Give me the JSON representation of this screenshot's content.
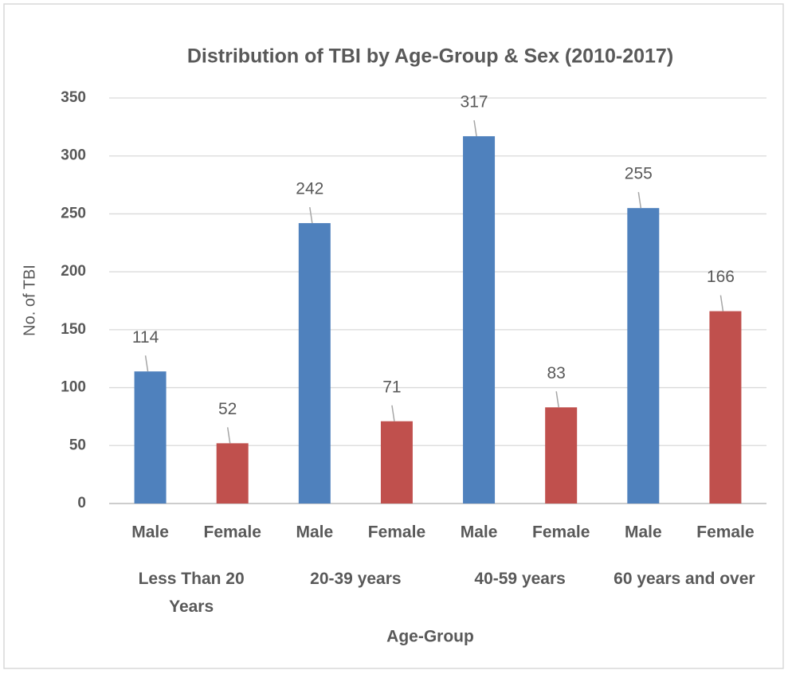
{
  "chart_data": {
    "type": "bar",
    "title": "Distribution of TBI by Age-Group & Sex (2010-2017)",
    "x_label": "Age-Group",
    "y_label": "No. of TBI",
    "groups": [
      "Less Than 20 Years",
      "20-39 years",
      "40-59 years",
      "60 years and over"
    ],
    "categories": [
      "Male",
      "Female",
      "Male",
      "Female",
      "Male",
      "Female",
      "Male",
      "Female"
    ],
    "values": [
      114,
      52,
      242,
      71,
      317,
      83,
      255,
      166
    ],
    "colors": [
      "#4f81bd",
      "#c0504d",
      "#4f81bd",
      "#c0504d",
      "#4f81bd",
      "#c0504d",
      "#4f81bd",
      "#c0504d"
    ],
    "ylim": [
      0,
      350
    ],
    "yticks": [
      0,
      50,
      100,
      150,
      200,
      250,
      300,
      350
    ],
    "grid": true
  }
}
